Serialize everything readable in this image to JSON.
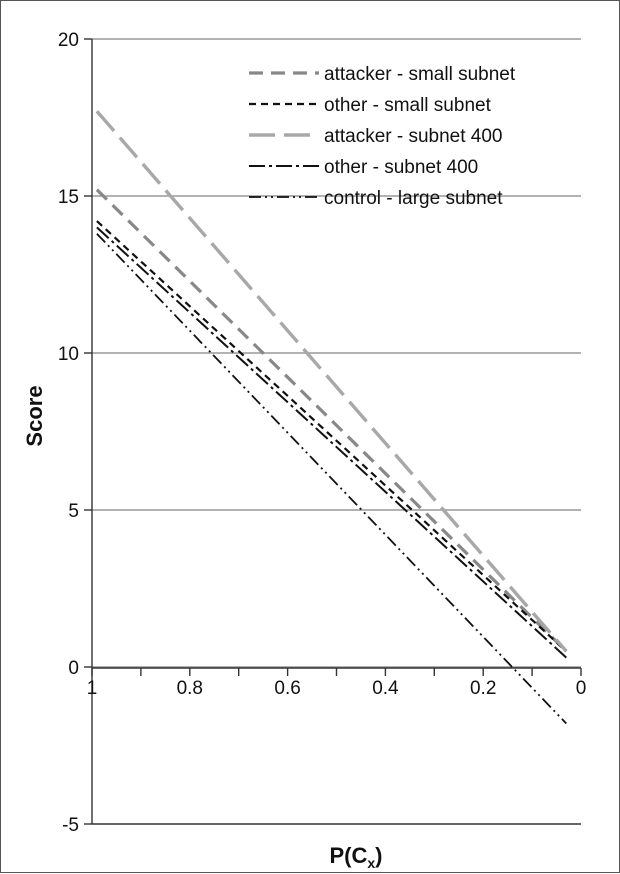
{
  "chart_data": {
    "type": "line",
    "title": "",
    "xlabel": "P(C",
    "xlabel_subscript": "x",
    "xlabel_suffix": ")",
    "ylabel": "Score",
    "xlim": [
      1,
      0
    ],
    "ylim": [
      -5,
      20
    ],
    "x_reversed": true,
    "grid": "horizontal",
    "legend_placement": "top-right",
    "x_tick_labels": [
      "1",
      "0.8",
      "0.6",
      "0.4",
      "0.2",
      "0"
    ],
    "y_tick_labels": [
      "-5",
      "0",
      "5",
      "10",
      "15",
      "20"
    ],
    "colors": {
      "grid": "#999999",
      "axis": "#333333",
      "dark": "#111111",
      "mid_gray": "#888888",
      "light_gray": "#a8a8a8"
    },
    "series": [
      {
        "name": "attacker - small subnet",
        "x": [
          0.99,
          0.03
        ],
        "y": [
          15.2,
          0.5
        ],
        "color": "#888888",
        "style": "dash"
      },
      {
        "name": "other - small subnet",
        "x": [
          0.99,
          0.03
        ],
        "y": [
          14.2,
          0.5
        ],
        "color": "#111111",
        "style": "short-dash"
      },
      {
        "name": "attacker - subnet 400",
        "x": [
          0.99,
          0.03
        ],
        "y": [
          17.7,
          0.5
        ],
        "color": "#a8a8a8",
        "style": "long-dash"
      },
      {
        "name": "other - subnet 400",
        "x": [
          0.99,
          0.03
        ],
        "y": [
          14.0,
          0.3
        ],
        "color": "#111111",
        "style": "dash-dot"
      },
      {
        "name": "control - large subnet",
        "x": [
          0.99,
          0.03
        ],
        "y": [
          13.8,
          -1.8
        ],
        "color": "#111111",
        "style": "dash-dot-dot"
      }
    ]
  }
}
